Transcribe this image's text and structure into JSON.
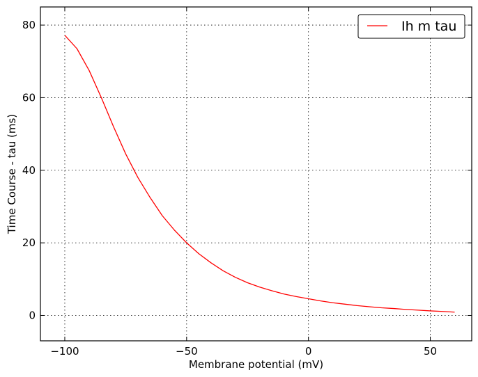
{
  "chart_data": {
    "type": "line",
    "xlabel": "Membrane potential (mV)",
    "ylabel": "Time Course - tau (ms)",
    "xlim": [
      -110,
      67
    ],
    "ylim": [
      -7,
      85
    ],
    "xticks": [
      -100,
      -50,
      0,
      50
    ],
    "xtick_labels": [
      "−100",
      "−50",
      "0",
      "50"
    ],
    "yticks": [
      0,
      20,
      40,
      60,
      80
    ],
    "ytick_labels": [
      "0",
      "20",
      "40",
      "60",
      "80"
    ],
    "grid": true,
    "legend_position": "top-right",
    "series": [
      {
        "name": "Ih m tau",
        "color": "#ff0000",
        "x": [
          -100,
          -95,
          -90,
          -85,
          -80,
          -75,
          -70,
          -65,
          -60,
          -55,
          -50,
          -45,
          -40,
          -35,
          -30,
          -25,
          -20,
          -15,
          -10,
          -5,
          0,
          5,
          10,
          15,
          20,
          25,
          30,
          35,
          40,
          45,
          50,
          55,
          60
        ],
        "y": [
          77.2,
          73.5,
          67.5,
          60.0,
          52.0,
          44.5,
          38.0,
          32.5,
          27.5,
          23.5,
          20.0,
          17.0,
          14.5,
          12.3,
          10.5,
          9.0,
          7.8,
          6.8,
          5.9,
          5.2,
          4.6,
          4.0,
          3.5,
          3.1,
          2.7,
          2.4,
          2.1,
          1.9,
          1.65,
          1.45,
          1.25,
          1.1,
          0.9
        ]
      }
    ]
  }
}
